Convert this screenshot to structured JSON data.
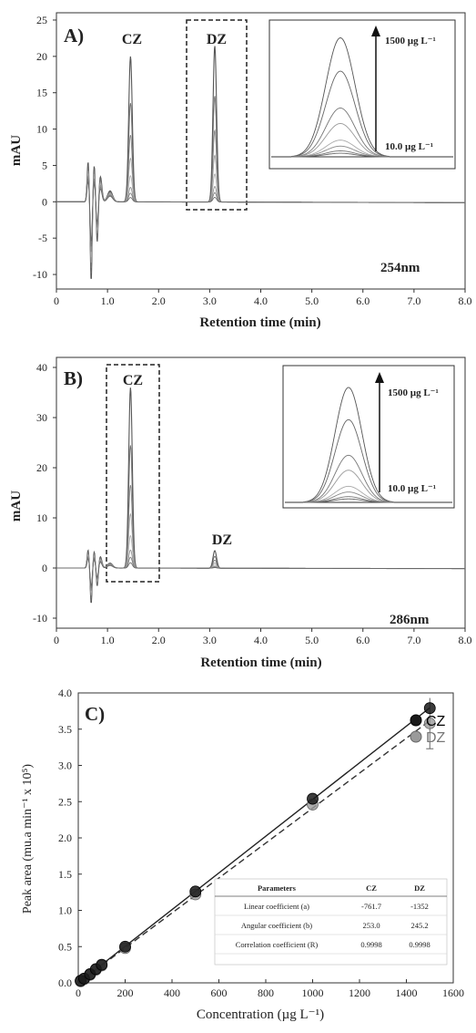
{
  "chart_data": [
    {
      "type": "line",
      "title": "A)",
      "xlabel": "Retention time (min)",
      "ylabel": "mAU",
      "xlim": [
        0,
        8
      ],
      "ylim": [
        -12,
        26
      ],
      "x_ticks": [
        "0",
        "1.0",
        "2.0",
        "3.0",
        "4.0",
        "5.0",
        "6.0",
        "7.0",
        "8.0"
      ],
      "y_ticks": [
        "25",
        "20",
        "15",
        "10",
        "5",
        "0",
        "-5",
        "-10"
      ],
      "wavelength_label": "254nm",
      "peaks": [
        {
          "name": "CZ",
          "retention_time": 1.45,
          "max_height": 20
        },
        {
          "name": "DZ",
          "retention_time": 3.1,
          "max_height": 21.5
        }
      ],
      "inset": {
        "top_label": "1500 µg L⁻¹",
        "bottom_label": "10.0 µg L⁻¹"
      },
      "annotations": [
        "CZ",
        "DZ"
      ]
    },
    {
      "type": "line",
      "title": "B)",
      "xlabel": "Retention time (min)",
      "ylabel": "mAU",
      "xlim": [
        0,
        8
      ],
      "ylim": [
        -12,
        42
      ],
      "x_ticks": [
        "0",
        "1.0",
        "2.0",
        "3.0",
        "4.0",
        "5.0",
        "6.0",
        "7.0",
        "8.0"
      ],
      "y_ticks": [
        "40",
        "30",
        "20",
        "10",
        "0",
        "-10"
      ],
      "wavelength_label": "286nm",
      "peaks": [
        {
          "name": "CZ",
          "retention_time": 1.45,
          "max_height": 36
        },
        {
          "name": "DZ",
          "retention_time": 3.1,
          "max_height": 3.5
        }
      ],
      "inset": {
        "top_label": "1500 µg L⁻¹",
        "bottom_label": "10.0 µg L⁻¹"
      },
      "annotations": [
        "CZ",
        "DZ"
      ]
    },
    {
      "type": "scatter",
      "title": "C)",
      "xlabel": "Concentration (µg L⁻¹)",
      "ylabel": "Peak area (mu.a min⁻¹ x 10⁵)",
      "xlim": [
        0,
        1600
      ],
      "ylim": [
        0,
        4.0
      ],
      "x_ticks": [
        "0",
        "200",
        "400",
        "600",
        "800",
        "1000",
        "1200",
        "1400",
        "1600"
      ],
      "y_ticks": [
        "0.0",
        "0.5",
        "1.0",
        "1.5",
        "2.0",
        "2.5",
        "3.0",
        "3.5",
        "4.0"
      ],
      "series": [
        {
          "name": "CZ",
          "color": "#111111",
          "x": [
            10,
            25,
            50,
            75,
            100,
            200,
            500,
            1000,
            1500
          ],
          "y": [
            0.03,
            0.06,
            0.12,
            0.19,
            0.25,
            0.5,
            1.26,
            2.54,
            3.79
          ]
        },
        {
          "name": "DZ",
          "color": "#888888",
          "x": [
            10,
            25,
            50,
            75,
            100,
            200,
            500,
            1000,
            1500
          ],
          "y": [
            0.02,
            0.05,
            0.11,
            0.18,
            0.24,
            0.48,
            1.22,
            2.46,
            3.58
          ],
          "error_last": 0.35
        }
      ],
      "table": {
        "headers": [
          "Parameters",
          "CZ",
          "DZ"
        ],
        "rows": [
          [
            "Linear coefficient (a)",
            "-761.7",
            "-1352"
          ],
          [
            "Angular coefficient (b)",
            "253.0",
            "245.2"
          ],
          [
            "Correlation coefficient (R)",
            "0.9998",
            "0.9998"
          ]
        ]
      }
    }
  ]
}
